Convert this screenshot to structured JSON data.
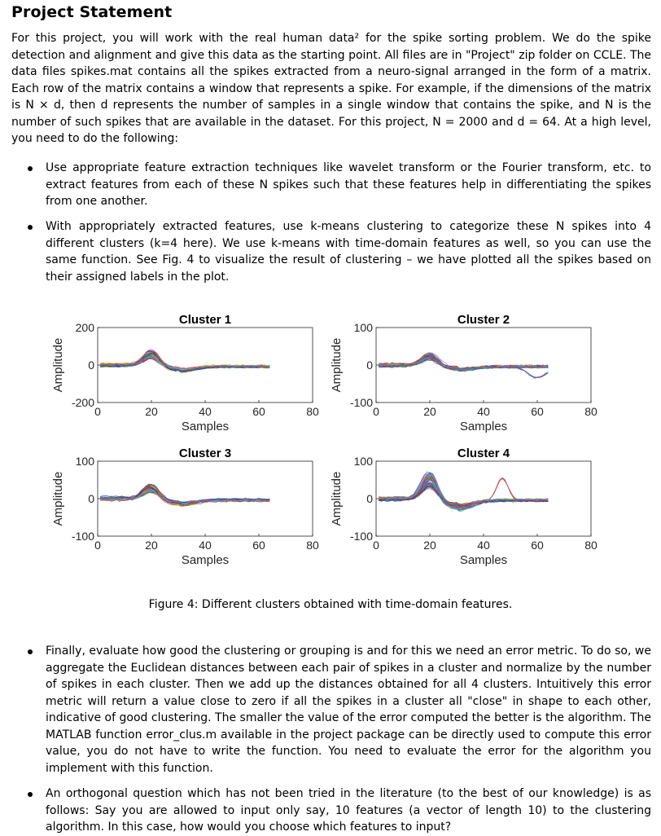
{
  "title": "Project Statement",
  "intro": "For this project, you will work with the real human data² for the spike sorting problem. We do the spike detection and alignment and give this data as the starting point. All files are in \"Project\" zip folder on CCLE. The data files spikes.mat contains all the spikes extracted from a neuro-signal arranged in the form of a matrix. Each row of the matrix contains a window that represents a spike. For example, if the dimensions of the matrix is N × d, then d represents the number of samples in a single window that contains the spike, and N is the number of such spikes that are available in the dataset. For this project, N = 2000 and d = 64. At a high level, you need to do the following:",
  "bullets": [
    "Use appropriate feature extraction techniques like wavelet transform or the Fourier transform, etc. to extract features from each of these N spikes such that these features help in differentiating the spikes from one another.",
    "With appropriately extracted features, use k-means clustering to categorize these N spikes into 4 different clusters (k=4 here). We use k-means with time-domain features as well, so you can use the same function. See Fig. 4 to visualize the result of clustering – we have plotted all the spikes based on their assigned labels in the plot.",
    "Finally, evaluate how good the clustering or grouping is and for this we need an error metric. To do so, we aggregate the Euclidean distances between each pair of spikes in a cluster and normalize by the number of spikes in each cluster. Then we add up the distances obtained for all 4 clusters. Intuitively this error metric will return a value close to zero if all the spikes in a cluster all \"close\" in shape to each other, indicative of good clustering. The smaller the value of the error computed the better is the algorithm. The MATLAB function error_clus.m available in the project package can be directly used to compute this error value, you do not have to write the function. You need to evaluate the error for the algorithm you implement with this function.",
    "An orthogonal question which has not been tried in the literature (to the best of our knowledge) is as follows: Say you are allowed to input only say, 10 features (a vector of length 10) to the clustering algorithm. In this case, how would you choose which features to input?"
  ],
  "caption": "Figure 4: Different clusters obtained with time-domain features.",
  "chart_data": [
    {
      "type": "line",
      "title": "Cluster 1",
      "xlabel": "Samples",
      "ylabel": "Amplitude",
      "xlim": [
        0,
        80
      ],
      "ylim": [
        -200,
        200
      ],
      "xticks": [
        "0",
        "20",
        "40",
        "60",
        "80"
      ],
      "yticks": [
        "-200",
        "0",
        "200"
      ],
      "series_count_approx": 300,
      "typical_peak": {
        "x": 20,
        "y": 60
      },
      "x_range_of_data": [
        0,
        64
      ]
    },
    {
      "type": "line",
      "title": "Cluster 2",
      "xlabel": "Samples",
      "ylabel": "Amplitude",
      "xlim": [
        0,
        80
      ],
      "ylim": [
        -100,
        100
      ],
      "xticks": [
        "0",
        "20",
        "40",
        "60",
        "80"
      ],
      "yticks": [
        "-100",
        "0",
        "100"
      ],
      "series_count_approx": 300,
      "typical_peak": {
        "x": 20,
        "y": 25
      },
      "x_range_of_data": [
        0,
        64
      ]
    },
    {
      "type": "line",
      "title": "Cluster 3",
      "xlabel": "Samples",
      "ylabel": "Amplitude",
      "xlim": [
        0,
        80
      ],
      "ylim": [
        -100,
        100
      ],
      "xticks": [
        "0",
        "20",
        "40",
        "60",
        "80"
      ],
      "yticks": [
        "-100",
        "0",
        "100"
      ],
      "series_count_approx": 300,
      "typical_peak": {
        "x": 20,
        "y": 30
      },
      "x_range_of_data": [
        0,
        64
      ]
    },
    {
      "type": "line",
      "title": "Cluster 4",
      "xlabel": "Samples",
      "ylabel": "Amplitude",
      "xlim": [
        0,
        80
      ],
      "ylim": [
        -100,
        100
      ],
      "xticks": [
        "0",
        "20",
        "40",
        "60",
        "80"
      ],
      "yticks": [
        "-100",
        "0",
        "100"
      ],
      "series_count_approx": 300,
      "typical_peak": {
        "x": 20,
        "y": 55
      },
      "x_range_of_data": [
        0,
        64
      ]
    }
  ]
}
